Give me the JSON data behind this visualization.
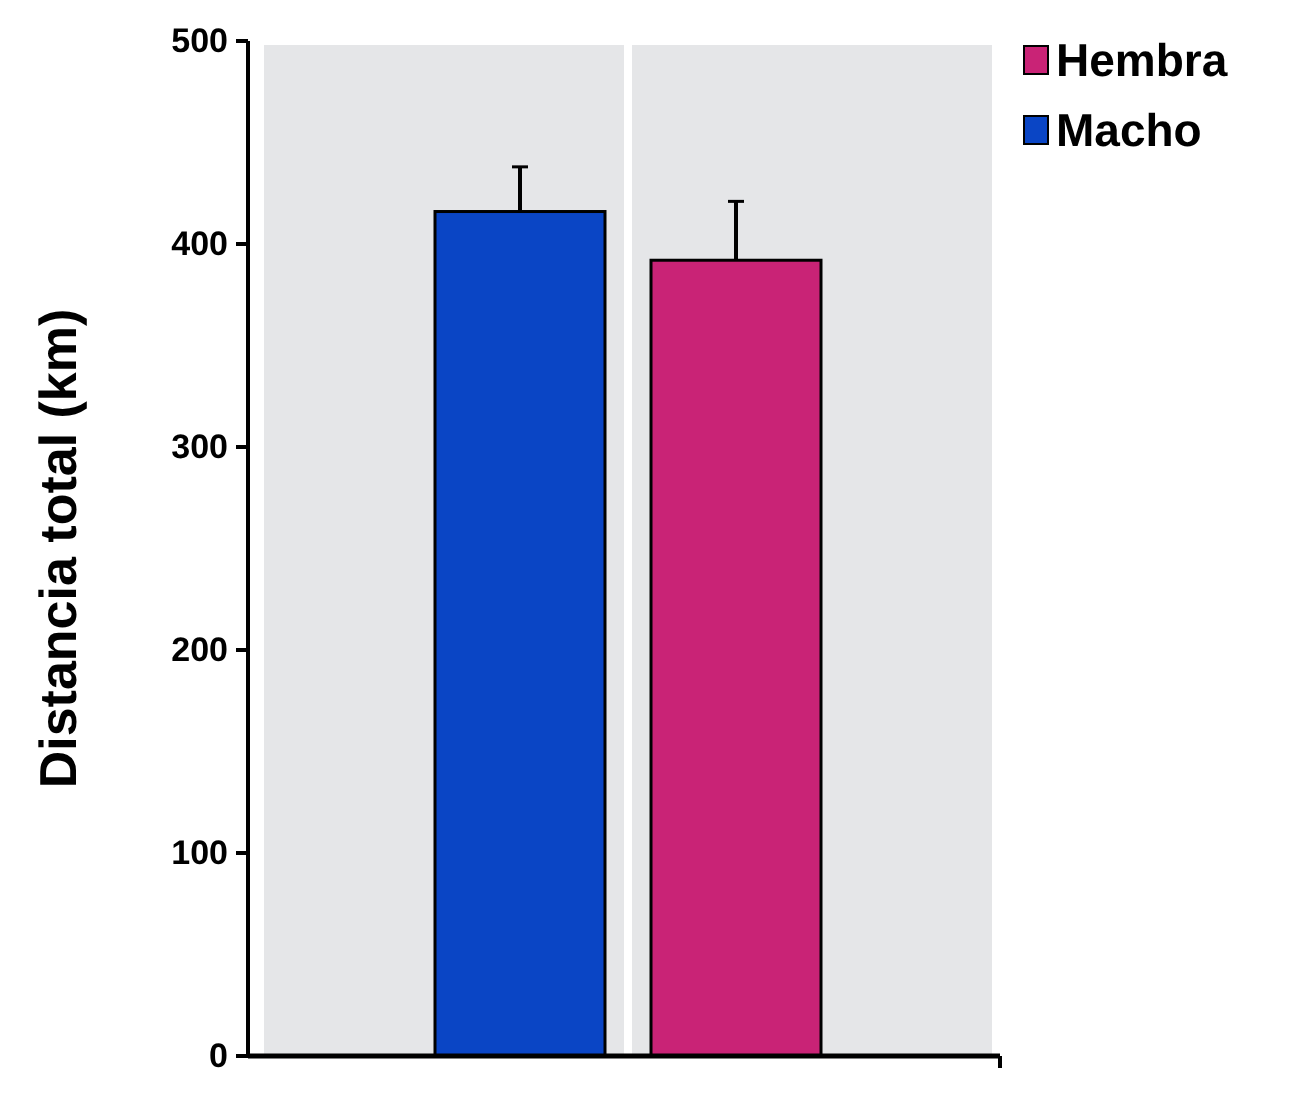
{
  "chart_data": {
    "type": "bar",
    "ylabel": "Distancia total (km)",
    "categories": [
      null
    ],
    "series": [
      {
        "name": "Macho",
        "color": "#0a45c5",
        "values": [
          416
        ],
        "errors": [
          22
        ]
      },
      {
        "name": "Hembra",
        "color": "#c92376",
        "values": [
          392
        ],
        "errors": [
          29
        ]
      }
    ],
    "ylim": [
      0,
      500
    ],
    "yticks": [
      0,
      100,
      200,
      300,
      400,
      500
    ],
    "legend": "top right",
    "grid": false
  }
}
